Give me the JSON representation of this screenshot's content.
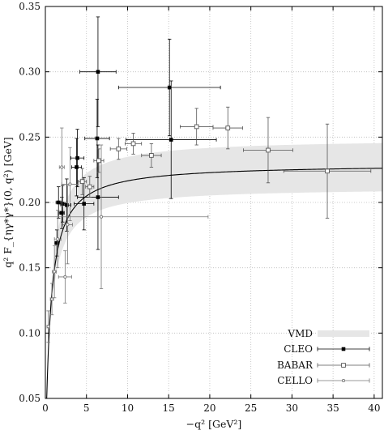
{
  "chart_data": {
    "type": "scatter",
    "xlabel": "−q² [GeV²]",
    "ylabel": "q² F_{ηγ*γ*}(0, q²) [GeV]",
    "xlim": [
      0,
      41
    ],
    "ylim": [
      0.05,
      0.35
    ],
    "x_ticks": [
      "0",
      "5",
      "10",
      "15",
      "20",
      "25",
      "30",
      "35",
      "40"
    ],
    "y_ticks": [
      "0.05",
      "0.10",
      "0.15",
      "0.20",
      "0.25",
      "0.30",
      "0.35"
    ],
    "grid": true,
    "legend_position": "bottom-right",
    "legend": [
      "VMD",
      "CLEO",
      "BABAR",
      "CELLO"
    ],
    "colors": {
      "vmd_band": "#e6e6e6",
      "curve": "#000000",
      "cleo": "#000000",
      "babar": "#555555",
      "cello": "#777777",
      "grid": "#bbbbbb"
    },
    "curve": {
      "name": "VMD",
      "amplitude": 0.2295,
      "mass_squared": 0.6,
      "band_upper_amplitude": 0.249,
      "band_lower_amplitude": 0.2115
    },
    "series": [
      {
        "name": "CLEO",
        "marker": "filled-square",
        "points": [
          {
            "x": 1.4,
            "y": 0.169,
            "xerr": [
              0.25,
              0.25
            ],
            "yerr": [
              0.01,
              0.01
            ]
          },
          {
            "x": 1.6,
            "y": 0.2,
            "xerr": [
              0.3,
              0.3
            ],
            "yerr": [
              0.012,
              0.012
            ]
          },
          {
            "x": 2.0,
            "y": 0.192,
            "xerr": [
              0.3,
              0.3
            ],
            "yerr": [
              0.012,
              0.012
            ]
          },
          {
            "x": 2.1,
            "y": 0.199,
            "xerr": [
              0.3,
              0.3
            ],
            "yerr": [
              0.014,
              0.014
            ]
          },
          {
            "x": 2.6,
            "y": 0.198,
            "xerr": [
              0.5,
              0.5
            ],
            "yerr": [
              0.02,
              0.02
            ]
          },
          {
            "x": 3.8,
            "y": 0.227,
            "xerr": [
              0.6,
              0.6
            ],
            "yerr": [
              0.022,
              0.022
            ]
          },
          {
            "x": 3.9,
            "y": 0.234,
            "xerr": [
              0.8,
              0.8
            ],
            "yerr": [
              0.022,
              0.022
            ]
          },
          {
            "x": 4.7,
            "y": 0.199,
            "xerr": [
              1.2,
              1.2
            ],
            "yerr": [
              0.02,
              0.02
            ]
          },
          {
            "x": 6.3,
            "y": 0.249,
            "xerr": [
              1.5,
              1.5
            ],
            "yerr": [
              0.03,
              0.03
            ]
          },
          {
            "x": 6.4,
            "y": 0.3,
            "xerr": [
              2.2,
              2.2
            ],
            "yerr": [
              0.042,
              0.042
            ]
          },
          {
            "x": 6.4,
            "y": 0.204,
            "xerr": [
              2.5,
              2.5
            ],
            "yerr": [
              0.04,
              0.04
            ]
          },
          {
            "x": 15.1,
            "y": 0.288,
            "xerr": [
              6.2,
              6.2
            ],
            "yerr": [
              0.037,
              0.037
            ]
          },
          {
            "x": 15.3,
            "y": 0.248,
            "xerr": [
              5.5,
              5.5
            ],
            "yerr": [
              0.045,
              0.045
            ]
          }
        ]
      },
      {
        "name": "BABAR",
        "marker": "open-square",
        "points": [
          {
            "x": 4.5,
            "y": 0.216,
            "xerr": [
              0.5,
              0.5
            ],
            "yerr": [
              0.01,
              0.01
            ]
          },
          {
            "x": 5.4,
            "y": 0.212,
            "xerr": [
              0.5,
              0.5
            ],
            "yerr": [
              0.008,
              0.008
            ]
          },
          {
            "x": 6.5,
            "y": 0.232,
            "xerr": [
              0.6,
              0.6
            ],
            "yerr": [
              0.009,
              0.009
            ]
          },
          {
            "x": 8.9,
            "y": 0.241,
            "xerr": [
              1.0,
              1.0
            ],
            "yerr": [
              0.008,
              0.008
            ]
          },
          {
            "x": 10.7,
            "y": 0.245,
            "xerr": [
              1.0,
              1.0
            ],
            "yerr": [
              0.008,
              0.008
            ]
          },
          {
            "x": 12.9,
            "y": 0.236,
            "xerr": [
              1.2,
              1.2
            ],
            "yerr": [
              0.009,
              0.009
            ]
          },
          {
            "x": 18.4,
            "y": 0.258,
            "xerr": [
              2.0,
              2.0
            ],
            "yerr": [
              0.014,
              0.014
            ]
          },
          {
            "x": 22.2,
            "y": 0.257,
            "xerr": [
              1.8,
              1.8
            ],
            "yerr": [
              0.016,
              0.016
            ]
          },
          {
            "x": 27.1,
            "y": 0.24,
            "xerr": [
              3.0,
              3.0
            ],
            "yerr": [
              0.025,
              0.025
            ]
          },
          {
            "x": 34.3,
            "y": 0.224,
            "xerr": [
              5.3,
              5.3
            ],
            "yerr": [
              0.036,
              0.036
            ]
          }
        ]
      },
      {
        "name": "CELLO",
        "marker": "open-circle",
        "points": [
          {
            "x": 0.35,
            "y": 0.105,
            "xerr": [
              0.15,
              0.15
            ],
            "yerr": [
              0.012,
              0.012
            ]
          },
          {
            "x": 0.8,
            "y": 0.126,
            "xerr": [
              0.2,
              0.2
            ],
            "yerr": [
              0.012,
              0.012
            ]
          },
          {
            "x": 1.1,
            "y": 0.147,
            "xerr": [
              0.25,
              0.25
            ],
            "yerr": [
              0.02,
              0.02
            ]
          },
          {
            "x": 1.5,
            "y": 0.172,
            "xerr": [
              0.4,
              0.4
            ],
            "yerr": [
              0.022,
              0.022
            ]
          },
          {
            "x": 2.0,
            "y": 0.227,
            "xerr": [
              0.3,
              0.3
            ],
            "yerr": [
              0.03,
              0.03
            ]
          },
          {
            "x": 2.4,
            "y": 0.143,
            "xerr": [
              0.8,
              0.8
            ],
            "yerr": [
              0.02,
              0.02
            ]
          },
          {
            "x": 2.7,
            "y": 0.183,
            "xerr": [
              0.6,
              0.6
            ],
            "yerr": [
              0.03,
              0.03
            ]
          },
          {
            "x": 3.0,
            "y": 0.214,
            "xerr": [
              1.0,
              1.0
            ],
            "yerr": [
              0.028,
              0.028
            ]
          },
          {
            "x": 6.8,
            "y": 0.189,
            "xerr": [
              13.0,
              13.0
            ],
            "yerr": [
              0.055,
              0.055
            ]
          }
        ]
      }
    ]
  }
}
